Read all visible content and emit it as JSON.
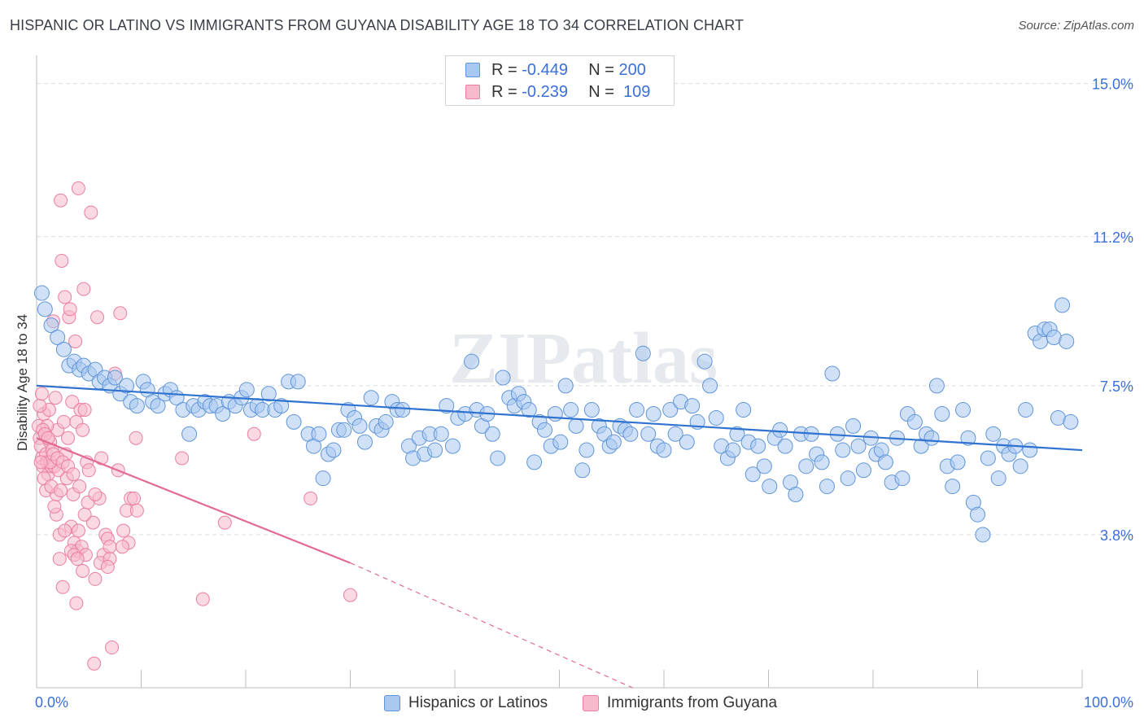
{
  "title": "HISPANIC OR LATINO VS IMMIGRANTS FROM GUYANA DISABILITY AGE 18 TO 34 CORRELATION CHART",
  "source": "Source: ZipAtlas.com",
  "watermark": "ZIPatlas",
  "legend": {
    "rows": [
      {
        "r_label": "R =",
        "r_value": "-0.449",
        "n_label": "N =",
        "n_value": "200"
      },
      {
        "r_label": "R =",
        "r_value": "-0.239",
        "n_label": "N =",
        "n_value": "109"
      }
    ]
  },
  "bottom_legend": [
    "Hispanics or Latinos",
    "Immigrants from Guyana"
  ],
  "colors": {
    "blue_fill": "#a9c8f0",
    "blue_stroke": "#5f95d9",
    "blue_line": "#2f72d0",
    "pink_fill": "#f7b9cc",
    "pink_stroke": "#ea7fa0",
    "pink_line": "#e26b94",
    "axis_label": "#3b6fd8",
    "grid": "#dcdcdc"
  },
  "chart_data": {
    "type": "scatter",
    "title": "HISPANIC OR LATINO VS IMMIGRANTS FROM GUYANA DISABILITY AGE 18 TO 34 CORRELATION CHART",
    "xlabel": "",
    "ylabel": "Disability Age 18 to 34",
    "xlim": [
      0,
      100
    ],
    "ylim": [
      0,
      15.5
    ],
    "x_tick_labels": [
      "0.0%",
      "100.0%"
    ],
    "y_ticks": [
      3.8,
      7.5,
      11.2,
      15.0
    ],
    "y_tick_labels": [
      "3.8%",
      "7.5%",
      "11.2%",
      "15.0%"
    ],
    "series": [
      {
        "name": "Hispanics or Latinos",
        "r": -0.449,
        "n": 200,
        "trend": {
          "x": [
            0,
            100
          ],
          "y": [
            7.5,
            5.9
          ]
        },
        "points": [
          [
            0.5,
            9.8
          ],
          [
            0.8,
            9.4
          ],
          [
            1.4,
            9.0
          ],
          [
            2.0,
            8.7
          ],
          [
            2.6,
            8.4
          ],
          [
            3.1,
            8.0
          ],
          [
            3.6,
            8.1
          ],
          [
            4.1,
            7.9
          ],
          [
            4.5,
            8.0
          ],
          [
            5.0,
            7.8
          ],
          [
            5.6,
            7.9
          ],
          [
            6.0,
            7.6
          ],
          [
            6.5,
            7.7
          ],
          [
            7.0,
            7.5
          ],
          [
            7.5,
            7.7
          ],
          [
            8.0,
            7.3
          ],
          [
            8.6,
            7.5
          ],
          [
            9.0,
            7.1
          ],
          [
            9.6,
            7.0
          ],
          [
            10.2,
            7.6
          ],
          [
            10.6,
            7.4
          ],
          [
            11.1,
            7.1
          ],
          [
            11.6,
            7.0
          ],
          [
            12.3,
            7.3
          ],
          [
            12.8,
            7.4
          ],
          [
            13.4,
            7.2
          ],
          [
            14.0,
            6.9
          ],
          [
            14.6,
            6.3
          ],
          [
            15.0,
            7.0
          ],
          [
            15.5,
            6.9
          ],
          [
            16.1,
            7.1
          ],
          [
            16.6,
            7.0
          ],
          [
            17.2,
            7.0
          ],
          [
            17.8,
            6.8
          ],
          [
            18.4,
            7.1
          ],
          [
            19.0,
            7.0
          ],
          [
            19.6,
            7.2
          ],
          [
            20.1,
            7.4
          ],
          [
            20.5,
            6.9
          ],
          [
            21.1,
            7.0
          ],
          [
            21.6,
            6.9
          ],
          [
            22.2,
            7.3
          ],
          [
            22.8,
            6.9
          ],
          [
            23.4,
            7.0
          ],
          [
            24.1,
            7.6
          ],
          [
            24.6,
            6.6
          ],
          [
            25.0,
            7.6
          ],
          [
            26.0,
            6.3
          ],
          [
            26.5,
            6.0
          ],
          [
            27.0,
            6.3
          ],
          [
            27.4,
            5.2
          ],
          [
            27.9,
            5.8
          ],
          [
            28.4,
            5.9
          ],
          [
            28.9,
            6.4
          ],
          [
            29.4,
            6.4
          ],
          [
            29.8,
            6.9
          ],
          [
            30.4,
            6.7
          ],
          [
            30.9,
            6.5
          ],
          [
            31.4,
            6.1
          ],
          [
            32.0,
            7.2
          ],
          [
            32.5,
            6.5
          ],
          [
            33.0,
            6.4
          ],
          [
            33.4,
            6.6
          ],
          [
            34.0,
            7.1
          ],
          [
            34.5,
            6.9
          ],
          [
            35.0,
            6.9
          ],
          [
            35.6,
            6.0
          ],
          [
            36.0,
            5.7
          ],
          [
            36.6,
            6.2
          ],
          [
            37.1,
            5.8
          ],
          [
            37.6,
            6.3
          ],
          [
            38.1,
            5.9
          ],
          [
            38.7,
            6.3
          ],
          [
            39.2,
            7.0
          ],
          [
            39.8,
            6.0
          ],
          [
            40.3,
            6.7
          ],
          [
            41.0,
            6.8
          ],
          [
            41.6,
            8.1
          ],
          [
            42.1,
            6.9
          ],
          [
            42.6,
            6.5
          ],
          [
            43.1,
            6.8
          ],
          [
            43.6,
            6.3
          ],
          [
            44.1,
            5.7
          ],
          [
            44.6,
            7.7
          ],
          [
            45.2,
            7.2
          ],
          [
            45.7,
            7.0
          ],
          [
            46.1,
            7.3
          ],
          [
            46.6,
            7.1
          ],
          [
            47.1,
            6.9
          ],
          [
            47.6,
            5.6
          ],
          [
            48.1,
            6.6
          ],
          [
            48.6,
            6.4
          ],
          [
            49.2,
            6.0
          ],
          [
            49.6,
            6.8
          ],
          [
            50.1,
            6.1
          ],
          [
            50.6,
            7.5
          ],
          [
            51.1,
            6.9
          ],
          [
            51.6,
            6.5
          ],
          [
            52.2,
            5.4
          ],
          [
            52.6,
            5.9
          ],
          [
            53.1,
            6.9
          ],
          [
            53.8,
            6.5
          ],
          [
            54.3,
            6.3
          ],
          [
            54.8,
            6.0
          ],
          [
            55.2,
            6.1
          ],
          [
            55.8,
            6.5
          ],
          [
            56.3,
            6.4
          ],
          [
            56.8,
            6.3
          ],
          [
            57.4,
            6.9
          ],
          [
            58.0,
            8.3
          ],
          [
            58.5,
            6.3
          ],
          [
            59.0,
            6.8
          ],
          [
            59.4,
            6.0
          ],
          [
            60.0,
            5.9
          ],
          [
            60.6,
            6.9
          ],
          [
            61.1,
            6.3
          ],
          [
            61.6,
            7.1
          ],
          [
            62.2,
            6.1
          ],
          [
            62.7,
            7.0
          ],
          [
            63.2,
            6.6
          ],
          [
            63.9,
            8.1
          ],
          [
            64.4,
            7.5
          ],
          [
            65.0,
            6.7
          ],
          [
            65.5,
            6.0
          ],
          [
            66.1,
            5.7
          ],
          [
            66.6,
            5.9
          ],
          [
            67.0,
            6.3
          ],
          [
            67.6,
            6.9
          ],
          [
            68.1,
            6.1
          ],
          [
            68.5,
            5.3
          ],
          [
            69.0,
            6.0
          ],
          [
            69.6,
            5.5
          ],
          [
            70.1,
            5.0
          ],
          [
            70.6,
            6.2
          ],
          [
            71.1,
            6.4
          ],
          [
            71.6,
            6.0
          ],
          [
            72.1,
            5.1
          ],
          [
            72.6,
            4.8
          ],
          [
            73.1,
            6.3
          ],
          [
            73.6,
            5.5
          ],
          [
            74.1,
            6.3
          ],
          [
            74.6,
            5.8
          ],
          [
            75.1,
            5.6
          ],
          [
            75.6,
            5.0
          ],
          [
            76.1,
            7.8
          ],
          [
            76.6,
            6.3
          ],
          [
            77.1,
            5.9
          ],
          [
            77.6,
            5.2
          ],
          [
            78.1,
            6.5
          ],
          [
            78.6,
            6.0
          ],
          [
            79.1,
            5.4
          ],
          [
            79.8,
            6.2
          ],
          [
            80.3,
            5.8
          ],
          [
            80.8,
            5.9
          ],
          [
            81.2,
            5.6
          ],
          [
            81.8,
            5.1
          ],
          [
            82.3,
            6.2
          ],
          [
            82.8,
            5.2
          ],
          [
            83.3,
            6.8
          ],
          [
            84.0,
            6.6
          ],
          [
            84.6,
            6.0
          ],
          [
            85.1,
            6.3
          ],
          [
            85.6,
            6.2
          ],
          [
            86.1,
            7.5
          ],
          [
            86.6,
            6.8
          ],
          [
            87.1,
            5.5
          ],
          [
            87.6,
            5.0
          ],
          [
            88.1,
            5.6
          ],
          [
            88.6,
            6.9
          ],
          [
            89.1,
            6.2
          ],
          [
            89.6,
            4.6
          ],
          [
            90.0,
            4.3
          ],
          [
            90.5,
            3.8
          ],
          [
            91.0,
            5.7
          ],
          [
            91.5,
            6.3
          ],
          [
            92.0,
            5.2
          ],
          [
            92.5,
            6.0
          ],
          [
            93.0,
            5.8
          ],
          [
            93.6,
            6.0
          ],
          [
            94.1,
            5.5
          ],
          [
            94.6,
            6.9
          ],
          [
            95.0,
            5.9
          ],
          [
            95.5,
            8.8
          ],
          [
            96.0,
            8.6
          ],
          [
            96.4,
            8.9
          ],
          [
            96.9,
            8.9
          ],
          [
            97.3,
            8.7
          ],
          [
            97.7,
            6.7
          ],
          [
            98.1,
            9.5
          ],
          [
            98.5,
            8.6
          ],
          [
            98.9,
            6.6
          ]
        ]
      },
      {
        "name": "Immigrants from Guyana",
        "r": -0.239,
        "n": 109,
        "trend": {
          "x": [
            0,
            30
          ],
          "y": [
            6.2,
            3.1
          ],
          "dashed_to": {
            "x": 57,
            "y": 0.0
          }
        },
        "points": [
          [
            0.2,
            6.5
          ],
          [
            0.3,
            6.2
          ],
          [
            0.4,
            6.0
          ],
          [
            0.5,
            5.7
          ],
          [
            0.6,
            5.5
          ],
          [
            0.7,
            6.8
          ],
          [
            0.8,
            6.3
          ],
          [
            0.9,
            5.8
          ],
          [
            1.0,
            5.6
          ],
          [
            1.1,
            5.3
          ],
          [
            1.2,
            6.9
          ],
          [
            1.3,
            6.1
          ],
          [
            1.4,
            5.5
          ],
          [
            1.5,
            5.9
          ],
          [
            1.6,
            9.1
          ],
          [
            1.7,
            5.5
          ],
          [
            1.8,
            7.2
          ],
          [
            1.9,
            4.3
          ],
          [
            2.0,
            6.4
          ],
          [
            2.1,
            5.4
          ],
          [
            2.2,
            3.2
          ],
          [
            2.3,
            12.1
          ],
          [
            2.4,
            10.6
          ],
          [
            2.5,
            2.5
          ],
          [
            2.6,
            6.6
          ],
          [
            2.7,
            9.7
          ],
          [
            2.8,
            5.8
          ],
          [
            2.9,
            5.2
          ],
          [
            3.0,
            6.2
          ],
          [
            3.1,
            9.2
          ],
          [
            3.2,
            9.4
          ],
          [
            3.3,
            4.0
          ],
          [
            3.4,
            7.1
          ],
          [
            3.5,
            4.8
          ],
          [
            3.6,
            3.6
          ],
          [
            3.7,
            8.6
          ],
          [
            3.8,
            6.6
          ],
          [
            3.9,
            3.4
          ],
          [
            4.0,
            12.4
          ],
          [
            4.1,
            5.0
          ],
          [
            4.2,
            6.9
          ],
          [
            4.3,
            3.5
          ],
          [
            4.4,
            6.4
          ],
          [
            4.5,
            9.9
          ],
          [
            4.6,
            6.9
          ],
          [
            4.7,
            3.3
          ],
          [
            4.8,
            5.6
          ],
          [
            5.0,
            5.4
          ],
          [
            5.2,
            11.8
          ],
          [
            5.4,
            4.1
          ],
          [
            5.6,
            2.7
          ],
          [
            5.8,
            9.2
          ],
          [
            6.0,
            4.7
          ],
          [
            6.2,
            5.7
          ],
          [
            6.4,
            3.3
          ],
          [
            6.6,
            3.8
          ],
          [
            6.8,
            3.7
          ],
          [
            7.0,
            3.5
          ],
          [
            7.2,
            1.0
          ],
          [
            7.5,
            7.8
          ],
          [
            7.8,
            5.4
          ],
          [
            8.0,
            9.3
          ],
          [
            8.3,
            3.9
          ],
          [
            8.6,
            4.4
          ],
          [
            8.8,
            3.6
          ],
          [
            9.0,
            4.7
          ],
          [
            9.3,
            4.7
          ],
          [
            9.6,
            4.4
          ],
          [
            1.0,
            6.5
          ],
          [
            0.6,
            6.4
          ],
          [
            1.3,
            5.6
          ],
          [
            1.6,
            5.8
          ],
          [
            2.0,
            5.7
          ],
          [
            2.5,
            5.6
          ],
          [
            3.0,
            5.5
          ],
          [
            0.4,
            5.6
          ],
          [
            0.8,
            6.3
          ],
          [
            1.1,
            6.2
          ],
          [
            0.9,
            4.9
          ],
          [
            1.7,
            4.5
          ],
          [
            2.2,
            3.8
          ],
          [
            3.3,
            3.4
          ],
          [
            3.6,
            3.3
          ],
          [
            4.0,
            3.9
          ],
          [
            4.9,
            4.6
          ],
          [
            0.3,
            7.0
          ],
          [
            0.5,
            7.3
          ],
          [
            1.9,
            4.8
          ],
          [
            2.7,
            3.9
          ],
          [
            3.9,
            3.2
          ],
          [
            4.4,
            2.9
          ],
          [
            5.6,
            4.8
          ],
          [
            6.1,
            3.1
          ],
          [
            7.0,
            3.2
          ],
          [
            8.2,
            3.5
          ],
          [
            0.7,
            5.2
          ],
          [
            1.4,
            5.0
          ],
          [
            2.3,
            4.9
          ],
          [
            3.5,
            5.3
          ],
          [
            4.6,
            4.3
          ],
          [
            13.9,
            5.7
          ],
          [
            15.9,
            2.2
          ],
          [
            18.0,
            4.1
          ],
          [
            20.8,
            6.3
          ],
          [
            26.2,
            4.7
          ],
          [
            30.0,
            2.3
          ],
          [
            5.5,
            0.6
          ],
          [
            9.5,
            6.2
          ],
          [
            6.8,
            3.0
          ],
          [
            3.8,
            2.1
          ]
        ]
      }
    ]
  }
}
